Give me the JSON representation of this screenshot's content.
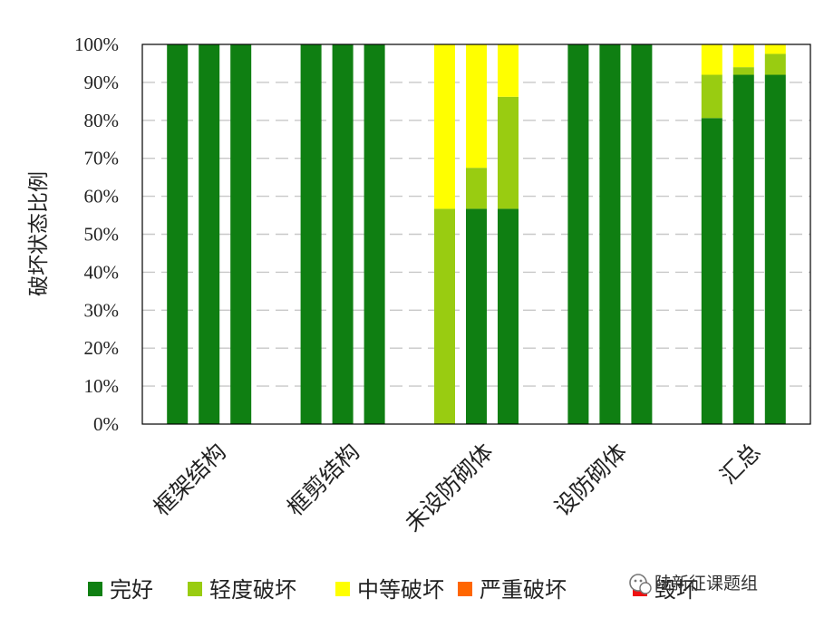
{
  "chart_data": {
    "type": "bar",
    "stacked": true,
    "ylabel": "破坏状态比例",
    "ylim": [
      0,
      100
    ],
    "yticks": [
      0,
      10,
      20,
      30,
      40,
      50,
      60,
      70,
      80,
      90,
      100
    ],
    "ytick_suffix": "%",
    "grid": true,
    "legend_position": "bottom",
    "groups": [
      "框架结构",
      "框剪结构",
      "未设防砌体",
      "设防砌体",
      "汇总"
    ],
    "bars_per_group": 3,
    "series": [
      {
        "name": "完好",
        "color": "#0f7f12",
        "values": [
          100,
          100,
          100,
          100,
          100,
          100,
          0,
          56.7,
          56.7,
          100,
          100,
          100,
          80.6,
          92,
          92
        ]
      },
      {
        "name": "轻度破坏",
        "color": "#99cc11",
        "values": [
          0,
          0,
          0,
          0,
          0,
          0,
          56.7,
          10.8,
          29.5,
          0,
          0,
          0,
          11.4,
          2,
          5.5
        ]
      },
      {
        "name": "中等破坏",
        "color": "#ffff00",
        "values": [
          0,
          0,
          0,
          0,
          0,
          0,
          43.3,
          32.5,
          13.8,
          0,
          0,
          0,
          8,
          6,
          2.5
        ]
      },
      {
        "name": "严重破坏",
        "color": "#ff6600",
        "values": [
          0,
          0,
          0,
          0,
          0,
          0,
          0,
          0,
          0,
          0,
          0,
          0,
          0,
          0,
          0
        ]
      },
      {
        "name": "毁坏",
        "color": "#ee1111",
        "values": [
          0,
          0,
          0,
          0,
          0,
          0,
          0,
          0,
          0,
          0,
          0,
          0,
          0,
          0,
          0
        ]
      }
    ]
  },
  "watermark": {
    "icon": "wechat-icon",
    "text": "陆新征课题组"
  }
}
